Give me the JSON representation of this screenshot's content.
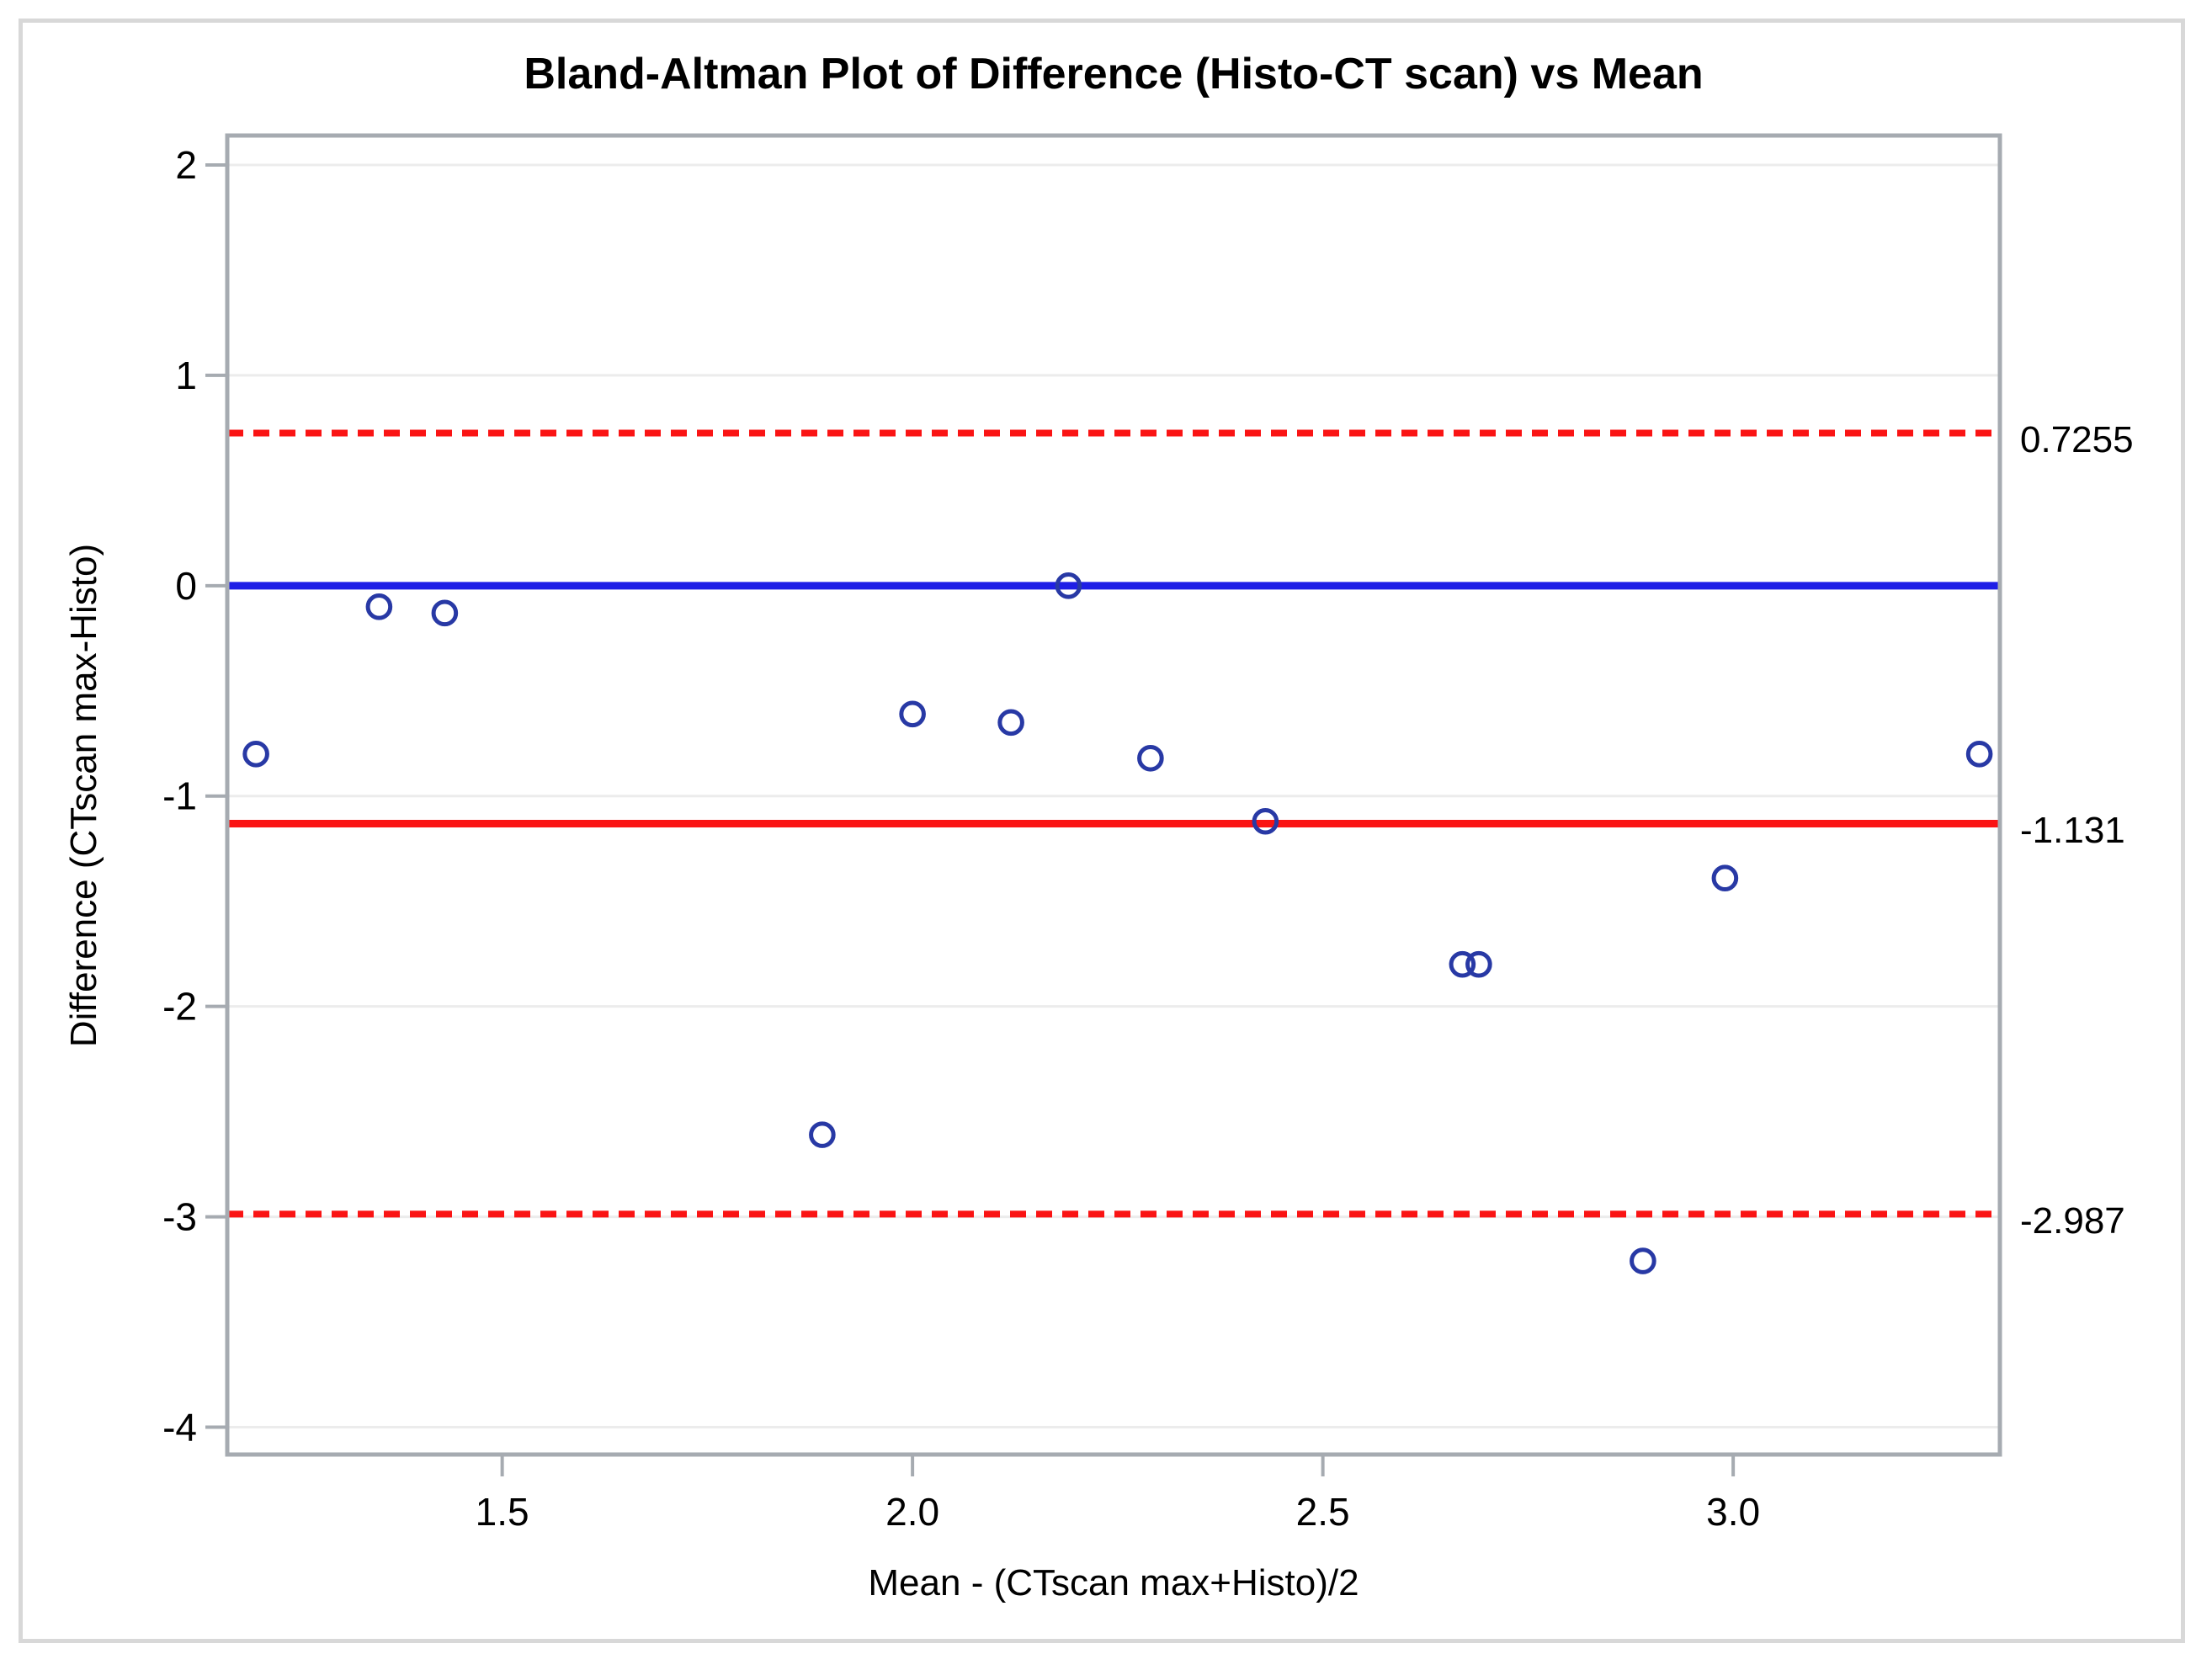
{
  "chart_data": {
    "type": "scatter",
    "title": "Bland-Altman Plot of Difference (Histo-CT scan) vs Mean",
    "xlabel": "Mean - (CTscan max+Histo)/2",
    "ylabel": "Difference (CTscan max-Histo)",
    "xlim": [
      1.165,
      3.325
    ],
    "ylim": [
      -4.13,
      2.14
    ],
    "x_ticks": [
      1.5,
      2.0,
      2.5,
      3.0
    ],
    "x_tick_labels": [
      "1.5",
      "2.0",
      "2.5",
      "3.0"
    ],
    "y_ticks": [
      2,
      1,
      0,
      -1,
      -2,
      -3,
      -4
    ],
    "y_tick_labels": [
      "2",
      "1",
      "0",
      "-1",
      "-2",
      "-3",
      "-4"
    ],
    "grid": "horizontal",
    "legend": "none",
    "points": [
      [
        1.2,
        -0.8
      ],
      [
        1.35,
        -0.1
      ],
      [
        1.43,
        -0.13
      ],
      [
        1.89,
        -2.61
      ],
      [
        2.0,
        -0.61
      ],
      [
        2.12,
        -0.65
      ],
      [
        2.19,
        0.0
      ],
      [
        2.29,
        -0.82
      ],
      [
        2.43,
        -1.12
      ],
      [
        2.67,
        -1.8
      ],
      [
        2.69,
        -1.8
      ],
      [
        2.89,
        -3.21
      ],
      [
        2.99,
        -1.39
      ],
      [
        3.3,
        -0.8
      ]
    ],
    "reference_lines": [
      {
        "name": "zero-reference-line",
        "value": 0,
        "style": "solid",
        "color": "#1e1ee6",
        "label": ""
      },
      {
        "name": "mean-difference-line",
        "value": -1.131,
        "style": "solid",
        "color": "#fa1414",
        "label": "-1.131"
      },
      {
        "name": "upper-limit-line",
        "value": 0.7255,
        "style": "dashed",
        "color": "#fa1414",
        "label": "0.7255"
      },
      {
        "name": "lower-limit-line",
        "value": -2.987,
        "style": "dashed",
        "color": "#fa1414",
        "label": "-2.987"
      }
    ],
    "marker": {
      "shape": "open-circle",
      "color": "#2839a5"
    },
    "colors": {
      "grid": "#ececec",
      "axis": "#a6abb1",
      "text": "#000000",
      "frame": "#d8d8d8",
      "background": "#ffffff"
    }
  }
}
